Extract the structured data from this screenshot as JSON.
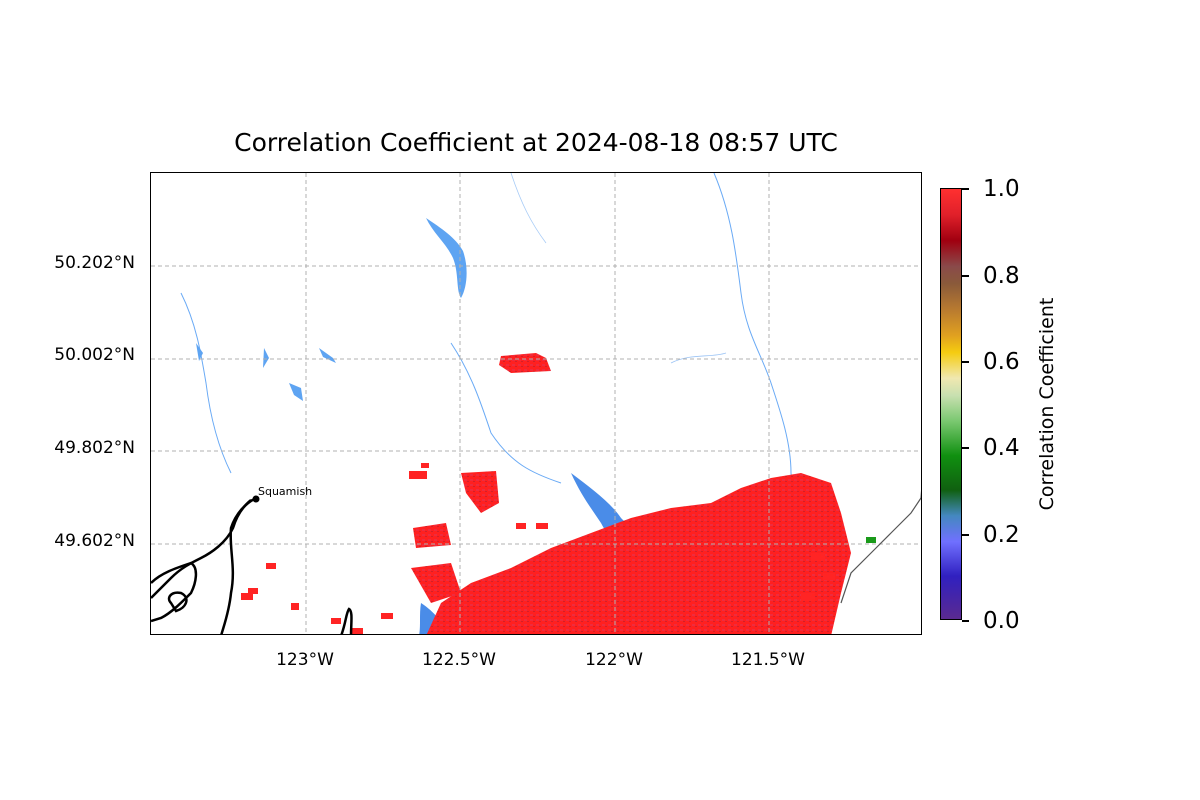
{
  "title": "Correlation Coefficient at 2024-08-18 08:57 UTC",
  "map": {
    "lat_labels": [
      "50.202°N",
      "50.002°N",
      "49.802°N",
      "49.602°N"
    ],
    "lon_labels": [
      "123°W",
      "122.5°W",
      "122°W",
      "121.5°W"
    ],
    "city": "Squamish"
  },
  "colorbar": {
    "label": "Correlation Coefficient",
    "ticks": [
      "1.0",
      "0.8",
      "0.6",
      "0.4",
      "0.2",
      "0.0"
    ],
    "range": [
      0.0,
      1.0
    ]
  },
  "colors": {
    "high_cc": "#ff1a1a",
    "water": "#4a90f0",
    "gridline": "#b0b0b0"
  }
}
